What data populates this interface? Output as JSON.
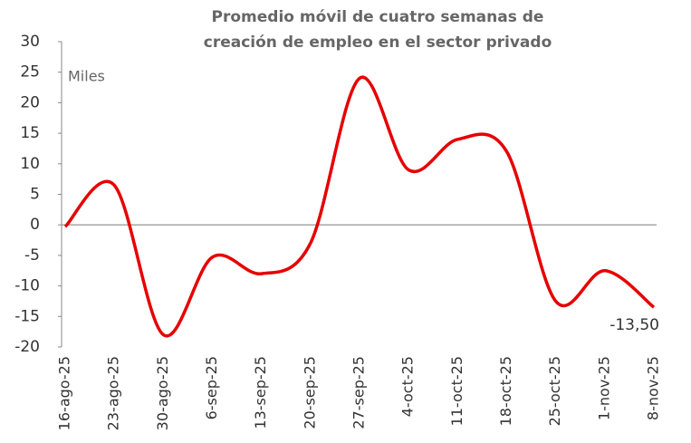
{
  "chart_data": {
    "type": "line",
    "title": [
      "Promedio móvil de cuatro semanas de",
      "creación de empleo en el sector privado"
    ],
    "annotation": "Miles",
    "categories": [
      "16-ago-25",
      "23-ago-25",
      "30-ago-25",
      "6-sep-25",
      "13-sep-25",
      "20-sep-25",
      "27-sep-25",
      "4-oct-25",
      "11-oct-25",
      "18-oct-25",
      "25-oct-25",
      "1-nov-25",
      "8-nov-25"
    ],
    "series": [
      {
        "name": "Promedio móvil",
        "color": "#e60000",
        "values": [
          -0.3,
          6.5,
          -18,
          -5.3,
          -8,
          -3,
          24,
          9,
          14,
          12,
          -12.5,
          -7.5,
          -13.5
        ],
        "value_labels": [
          null,
          null,
          null,
          null,
          null,
          null,
          null,
          null,
          null,
          null,
          null,
          null,
          "-13,50"
        ]
      }
    ],
    "ylim": [
      -20,
      30
    ],
    "yticks": [
      -20,
      -15,
      -10,
      -5,
      0,
      5,
      10,
      15,
      20,
      25,
      30
    ],
    "grid": false
  }
}
